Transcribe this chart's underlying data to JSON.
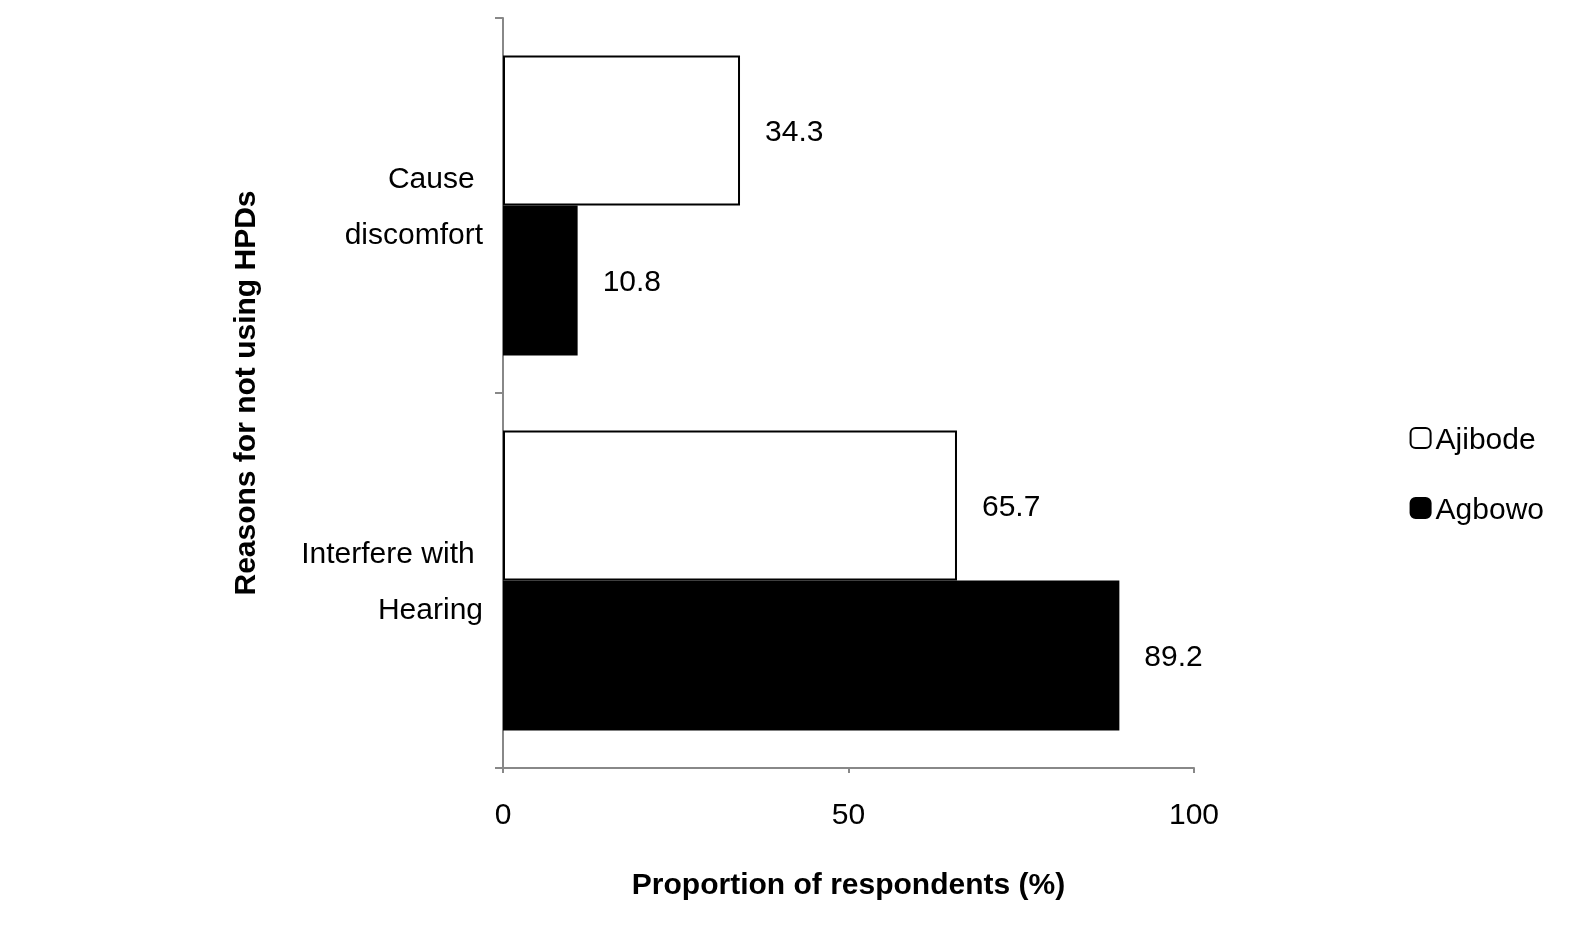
{
  "chart_data": {
    "type": "bar",
    "orientation": "horizontal",
    "xlabel": "Proportion of respondents (%)",
    "ylabel": "Reasons for not using HPDs",
    "categories": [
      "Cause discomfort",
      "Interfere with Hearing"
    ],
    "series": [
      {
        "name": "Ajibode",
        "color": "#ffffff",
        "values": [
          34.3,
          65.7
        ]
      },
      {
        "name": "Agbowo",
        "color": "#000000",
        "values": [
          10.8,
          89.2
        ]
      }
    ],
    "xlim": [
      0,
      100
    ],
    "xticks": [
      0,
      50,
      100
    ],
    "grid": false,
    "legend": "right",
    "data_labels": true
  }
}
